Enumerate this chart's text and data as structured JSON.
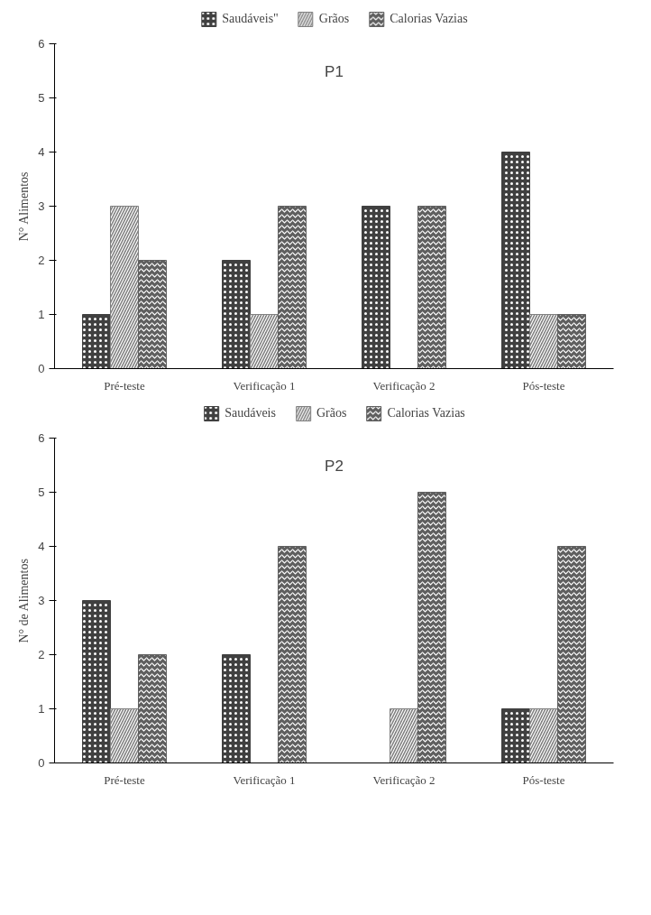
{
  "chart_data": [
    {
      "type": "bar",
      "title": "P1",
      "ylabel": "N° Alimentos",
      "categories": [
        "Pré-teste",
        "Verificação 1",
        "Verificação 2",
        "Pós-teste"
      ],
      "series": [
        {
          "name": "Saudáveis\"",
          "color": "#404040",
          "values": [
            1,
            2,
            3,
            4
          ]
        },
        {
          "name": "Grãos",
          "color": "#808080",
          "values": [
            3,
            1,
            null,
            1
          ]
        },
        {
          "name": "Calorias Vazias",
          "color": "#5f5f5f",
          "values": [
            2,
            3,
            3,
            1
          ]
        }
      ],
      "ylim": [
        0,
        6
      ],
      "yticks": [
        0,
        1,
        2,
        3,
        4,
        5,
        6
      ],
      "grid": false,
      "legend": "top"
    },
    {
      "type": "bar",
      "title": "P2",
      "ylabel": "N° de Alimentos",
      "categories": [
        "Pré-teste",
        "Verificação 1",
        "Verificação 2",
        "Pós-teste"
      ],
      "series": [
        {
          "name": "Saudáveis",
          "color": "#404040",
          "values": [
            3,
            2,
            null,
            1
          ]
        },
        {
          "name": "Grãos",
          "color": "#808080",
          "values": [
            1,
            null,
            1,
            1
          ]
        },
        {
          "name": "Calorias Vazias",
          "color": "#5f5f5f",
          "values": [
            2,
            4,
            5,
            4
          ]
        }
      ],
      "ylim": [
        0,
        6
      ],
      "yticks": [
        0,
        1,
        2,
        3,
        4,
        5,
        6
      ],
      "grid": false,
      "legend": "top"
    }
  ]
}
